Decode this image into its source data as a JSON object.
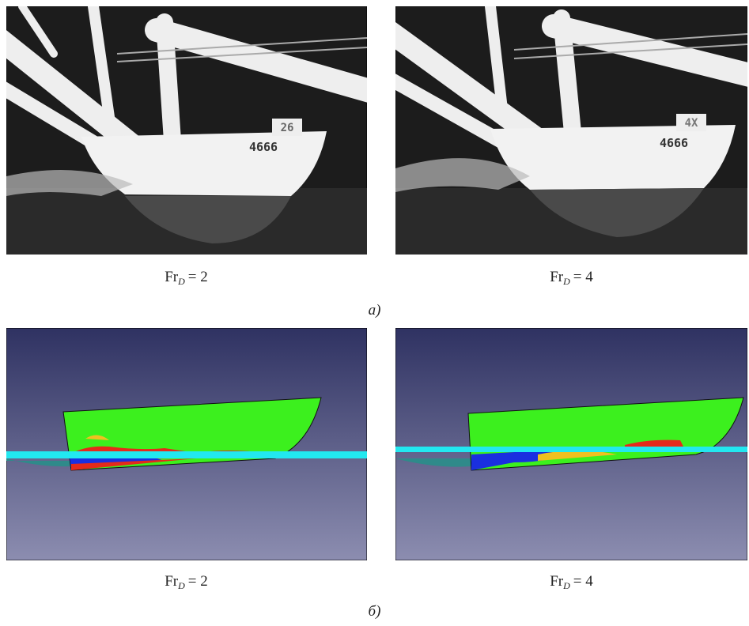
{
  "figures": [
    {
      "label": "а)",
      "panels": [
        {
          "caption": {
            "base": "Fr",
            "sub": "D",
            "rest": "= 2"
          },
          "hull_marking": "4666",
          "tag": "26"
        },
        {
          "caption": {
            "base": "Fr",
            "sub": "D",
            "rest": "= 4"
          },
          "hull_marking": "4666",
          "tag": "4X"
        }
      ]
    },
    {
      "label": "б)",
      "panels": [
        {
          "caption": {
            "base": "Fr",
            "sub": "D",
            "rest": "= 2"
          }
        },
        {
          "caption": {
            "base": "Fr",
            "sub": "D",
            "rest": "= 4"
          }
        }
      ]
    }
  ]
}
